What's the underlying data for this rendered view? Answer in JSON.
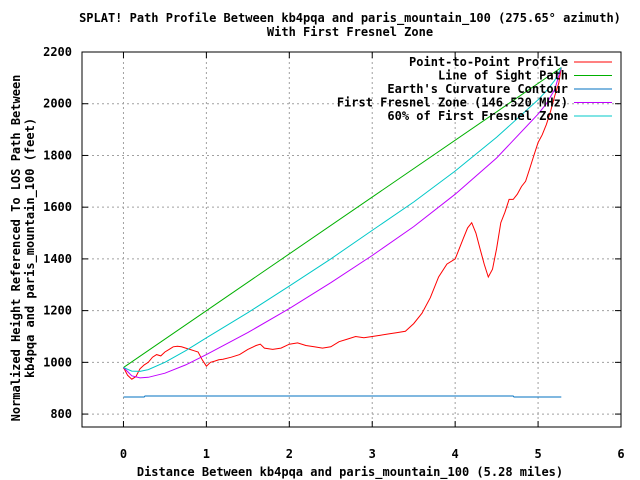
{
  "chart_data": {
    "type": "line",
    "title_line1": "SPLAT! Path Profile Between kb4pqa and paris_mountain_100 (275.65° azimuth)",
    "title_line2": "With First Fresnel Zone",
    "xlabel": "Distance Between kb4pqa and paris_mountain_100 (5.28 miles)",
    "ylabel_line1": "Normalized Height Referenced To LOS Path Between",
    "ylabel_line2": "kb4pqa and paris_mountain_100 (feet)",
    "xlim": [
      -0.5,
      6
    ],
    "ylim": [
      750,
      2200
    ],
    "x_ticks": [
      0,
      1,
      2,
      3,
      4,
      5,
      6
    ],
    "y_ticks": [
      800,
      1000,
      1200,
      1400,
      1600,
      1800,
      2000,
      2200
    ],
    "grid": true,
    "legend_position": "top-right",
    "series": [
      {
        "name": "Point-to-Point Profile",
        "color": "#ff0000",
        "x": [
          0,
          0.05,
          0.1,
          0.15,
          0.2,
          0.25,
          0.3,
          0.35,
          0.4,
          0.45,
          0.5,
          0.55,
          0.6,
          0.65,
          0.7,
          0.75,
          0.8,
          0.85,
          0.9,
          0.95,
          1.0,
          1.05,
          1.1,
          1.15,
          1.2,
          1.3,
          1.4,
          1.5,
          1.6,
          1.65,
          1.7,
          1.8,
          1.9,
          2.0,
          2.1,
          2.2,
          2.3,
          2.4,
          2.5,
          2.6,
          2.7,
          2.8,
          2.9,
          3.0,
          3.1,
          3.2,
          3.3,
          3.4,
          3.5,
          3.6,
          3.7,
          3.8,
          3.9,
          4.0,
          4.05,
          4.1,
          4.15,
          4.2,
          4.25,
          4.3,
          4.35,
          4.4,
          4.45,
          4.5,
          4.55,
          4.6,
          4.65,
          4.7,
          4.75,
          4.8,
          4.85,
          4.9,
          4.95,
          5.0,
          5.05,
          5.1,
          5.15,
          5.2,
          5.25,
          5.28
        ],
        "y": [
          980,
          950,
          935,
          945,
          975,
          990,
          1000,
          1020,
          1030,
          1025,
          1040,
          1050,
          1060,
          1062,
          1060,
          1055,
          1050,
          1045,
          1040,
          1010,
          985,
          1000,
          1005,
          1010,
          1012,
          1020,
          1030,
          1050,
          1065,
          1070,
          1055,
          1050,
          1055,
          1070,
          1075,
          1065,
          1060,
          1055,
          1060,
          1080,
          1090,
          1100,
          1095,
          1100,
          1105,
          1110,
          1115,
          1120,
          1150,
          1190,
          1250,
          1330,
          1380,
          1400,
          1440,
          1480,
          1520,
          1540,
          1500,
          1440,
          1380,
          1330,
          1360,
          1440,
          1540,
          1580,
          1630,
          1630,
          1650,
          1680,
          1700,
          1750,
          1800,
          1850,
          1880,
          1920,
          1970,
          2030,
          2080,
          2140
        ]
      },
      {
        "name": "Line of Sight Path",
        "color": "#00b000",
        "x": [
          0,
          5.28
        ],
        "y": [
          980,
          2140
        ]
      },
      {
        "name": "Earth's Curvature Contour",
        "color": "#0070c0",
        "x": [
          0,
          0.25,
          0.26,
          4.7,
          4.71,
          5.28
        ],
        "y": [
          866,
          866,
          870,
          870,
          866,
          866
        ]
      },
      {
        "name": "First Fresnel Zone (146.520 MHz)",
        "color": "#c000ff",
        "x": [
          0,
          0.1,
          0.2,
          0.3,
          0.5,
          0.75,
          1.0,
          1.5,
          2.0,
          2.5,
          3.0,
          3.5,
          4.0,
          4.5,
          5.0,
          5.1,
          5.2,
          5.28
        ],
        "y": [
          980,
          948,
          940,
          942,
          958,
          990,
          1030,
          1115,
          1208,
          1308,
          1413,
          1525,
          1650,
          1790,
          1960,
          2000,
          2055,
          2140
        ]
      },
      {
        "name": "60% of First Fresnel Zone",
        "color": "#00c8c8",
        "x": [
          0,
          0.1,
          0.2,
          0.3,
          0.5,
          0.75,
          1.0,
          1.5,
          2.0,
          2.5,
          3.0,
          3.5,
          4.0,
          4.5,
          5.0,
          5.1,
          5.2,
          5.28
        ],
        "y": [
          980,
          966,
          965,
          972,
          1000,
          1045,
          1095,
          1192,
          1295,
          1400,
          1510,
          1620,
          1740,
          1870,
          2015,
          2050,
          2090,
          2140
        ]
      }
    ]
  }
}
